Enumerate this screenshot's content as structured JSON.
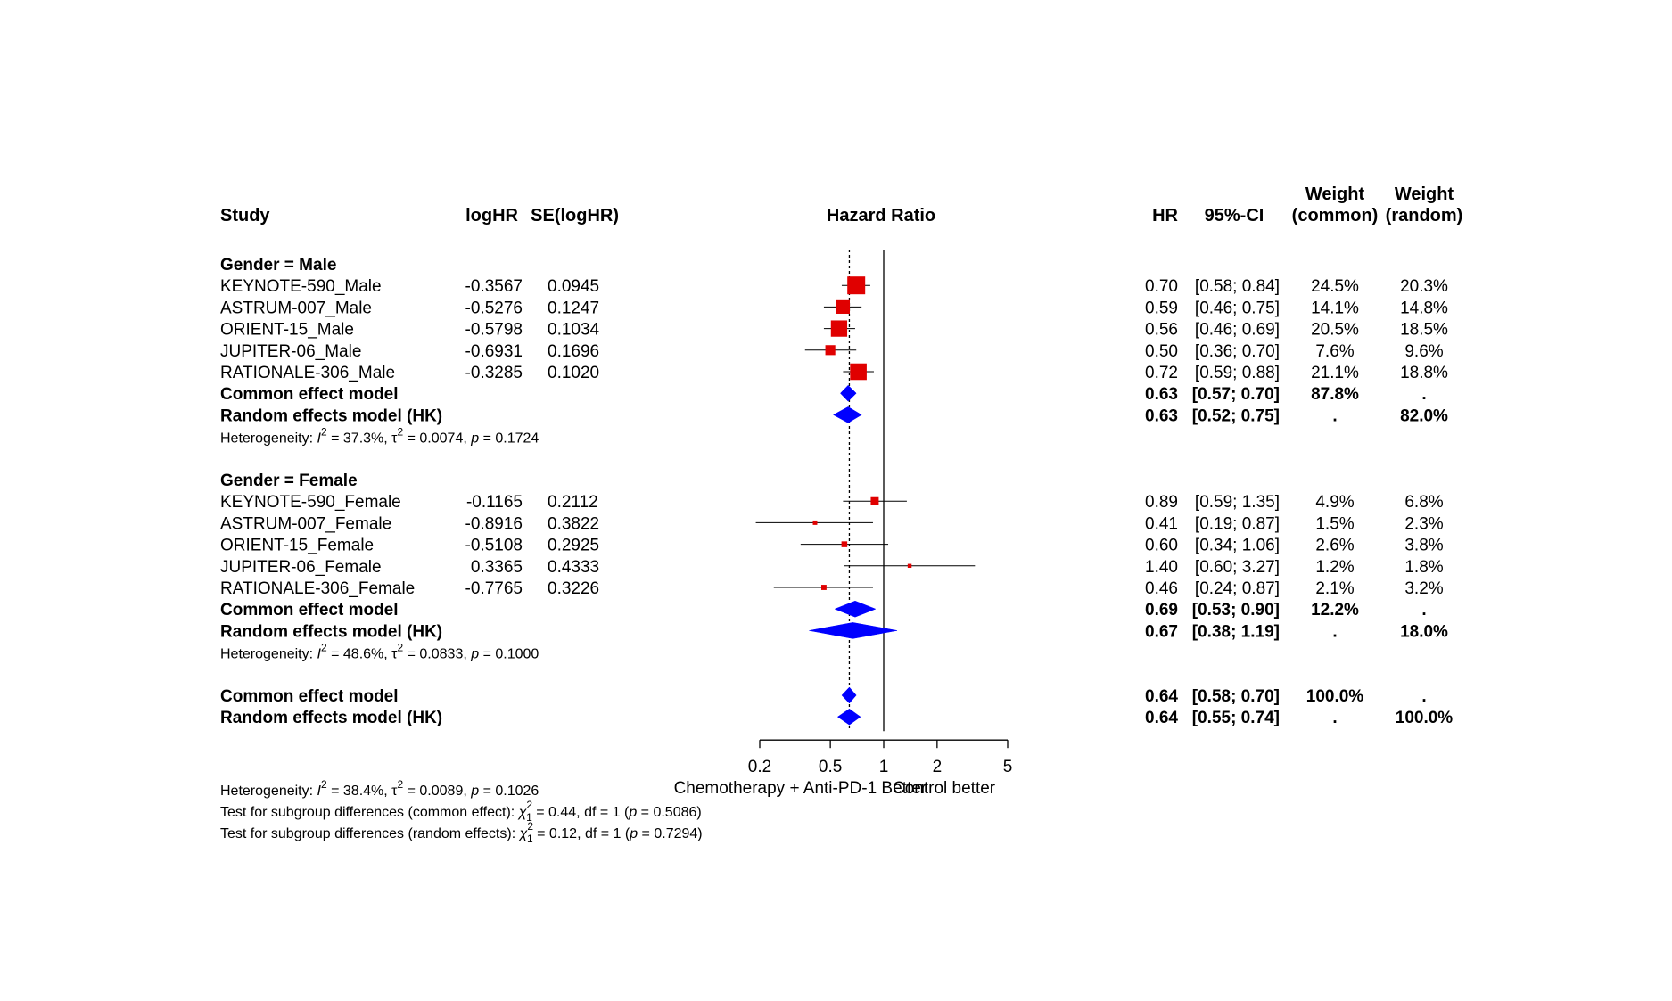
{
  "headers": {
    "study": "Study",
    "loghr": "logHR",
    "se": "SE(logHR)",
    "plot": "Hazard Ratio",
    "hr": "HR",
    "ci": "95%-CI",
    "weight_common_1": "Weight",
    "weight_common_2": "(common)",
    "weight_random_1": "Weight",
    "weight_random_2": "(random)"
  },
  "colors": {
    "study_box": "#e00000",
    "pooled_diamond": "#0000ff",
    "line": "#000000"
  },
  "chart_data": {
    "type": "forest",
    "xscale": "log",
    "xlim": [
      0.2,
      5
    ],
    "ticks": [
      "0.2",
      "0.5",
      "1",
      "2",
      "5"
    ],
    "tick_values": [
      0.2,
      0.5,
      1,
      2,
      5
    ],
    "label_left": "Chemotherapy + Anti-PD-1 Better",
    "label_right": "Control better",
    "reference_line": 1,
    "pooled_random_line": 0.64,
    "rows": [
      {
        "kind": "group",
        "label": "Gender = Male"
      },
      {
        "kind": "study",
        "label": "KEYNOTE-590_Male",
        "loghr": "-0.3567",
        "se": "0.0945",
        "hr": 0.7,
        "lo": 0.58,
        "hi": 0.84,
        "hr_text": "0.70",
        "ci_text": "[0.58; 0.84]",
        "wc": "24.5%",
        "wr": "20.3%",
        "weight": 24.5
      },
      {
        "kind": "study",
        "label": "ASTRUM-007_Male",
        "loghr": "-0.5276",
        "se": "0.1247",
        "hr": 0.59,
        "lo": 0.46,
        "hi": 0.75,
        "hr_text": "0.59",
        "ci_text": "[0.46; 0.75]",
        "wc": "14.1%",
        "wr": "14.8%",
        "weight": 14.1
      },
      {
        "kind": "study",
        "label": "ORIENT-15_Male",
        "loghr": "-0.5798",
        "se": "0.1034",
        "hr": 0.56,
        "lo": 0.46,
        "hi": 0.69,
        "hr_text": "0.56",
        "ci_text": "[0.46; 0.69]",
        "wc": "20.5%",
        "wr": "18.5%",
        "weight": 20.5
      },
      {
        "kind": "study",
        "label": "JUPITER-06_Male",
        "loghr": "-0.6931",
        "se": "0.1696",
        "hr": 0.5,
        "lo": 0.36,
        "hi": 0.7,
        "hr_text": "0.50",
        "ci_text": "[0.36; 0.70]",
        "wc": "7.6%",
        "wr": "9.6%",
        "weight": 7.6
      },
      {
        "kind": "study",
        "label": "RATIONALE-306_Male",
        "loghr": "-0.3285",
        "se": "0.1020",
        "hr": 0.72,
        "lo": 0.59,
        "hi": 0.88,
        "hr_text": "0.72",
        "ci_text": "[0.59; 0.88]",
        "wc": "21.1%",
        "wr": "18.8%",
        "weight": 21.1
      },
      {
        "kind": "pooled",
        "label": "Common effect model",
        "hr": 0.63,
        "lo": 0.57,
        "hi": 0.7,
        "hr_text": "0.63",
        "ci_text": "[0.57; 0.70]",
        "wc": "87.8%",
        "wr": "."
      },
      {
        "kind": "pooled",
        "label": "Random effects model (HK)",
        "hr": 0.63,
        "lo": 0.52,
        "hi": 0.75,
        "hr_text": "0.63",
        "ci_text": "[0.52; 0.75]",
        "wc": ".",
        "wr": "82.0%"
      },
      {
        "kind": "het",
        "i2": "37.3%",
        "tau2": "0.0074",
        "p": "0.1724"
      },
      {
        "kind": "blank"
      },
      {
        "kind": "group",
        "label": "Gender = Female"
      },
      {
        "kind": "study",
        "label": "KEYNOTE-590_Female",
        "loghr": "-0.1165",
        "se": "0.2112",
        "hr": 0.89,
        "lo": 0.59,
        "hi": 1.35,
        "hr_text": "0.89",
        "ci_text": "[0.59; 1.35]",
        "wc": "4.9%",
        "wr": "6.8%",
        "weight": 4.9
      },
      {
        "kind": "study",
        "label": "ASTRUM-007_Female",
        "loghr": "-0.8916",
        "se": "0.3822",
        "hr": 0.41,
        "lo": 0.19,
        "hi": 0.87,
        "hr_text": "0.41",
        "ci_text": "[0.19; 0.87]",
        "wc": "1.5%",
        "wr": "2.3%",
        "weight": 1.5
      },
      {
        "kind": "study",
        "label": "ORIENT-15_Female",
        "loghr": "-0.5108",
        "se": "0.2925",
        "hr": 0.6,
        "lo": 0.34,
        "hi": 1.06,
        "hr_text": "0.60",
        "ci_text": "[0.34; 1.06]",
        "wc": "2.6%",
        "wr": "3.8%",
        "weight": 2.6
      },
      {
        "kind": "study",
        "label": "JUPITER-06_Female",
        "loghr": "0.3365",
        "se": "0.4333",
        "hr": 1.4,
        "lo": 0.6,
        "hi": 3.27,
        "hr_text": "1.40",
        "ci_text": "[0.60; 3.27]",
        "wc": "1.2%",
        "wr": "1.8%",
        "weight": 1.2
      },
      {
        "kind": "study",
        "label": "RATIONALE-306_Female",
        "loghr": "-0.7765",
        "se": "0.3226",
        "hr": 0.46,
        "lo": 0.24,
        "hi": 0.87,
        "hr_text": "0.46",
        "ci_text": "[0.24; 0.87]",
        "wc": "2.1%",
        "wr": "3.2%",
        "weight": 2.1
      },
      {
        "kind": "pooled",
        "label": "Common effect model",
        "hr": 0.69,
        "lo": 0.53,
        "hi": 0.9,
        "hr_text": "0.69",
        "ci_text": "[0.53; 0.90]",
        "wc": "12.2%",
        "wr": "."
      },
      {
        "kind": "pooled",
        "label": "Random effects model (HK)",
        "hr": 0.67,
        "lo": 0.38,
        "hi": 1.19,
        "hr_text": "0.67",
        "ci_text": "[0.38; 1.19]",
        "wc": ".",
        "wr": "18.0%"
      },
      {
        "kind": "het",
        "i2": "48.6%",
        "tau2": "0.0833",
        "p": "0.1000"
      },
      {
        "kind": "blank"
      },
      {
        "kind": "pooled",
        "label": "Common effect model",
        "hr": 0.64,
        "lo": 0.58,
        "hi": 0.7,
        "hr_text": "0.64",
        "ci_text": "[0.58; 0.70]",
        "wc": "100.0%",
        "wr": "."
      },
      {
        "kind": "pooled",
        "label": "Random effects model (HK)",
        "hr": 0.64,
        "lo": 0.55,
        "hi": 0.74,
        "hr_text": "0.64",
        "ci_text": "[0.55; 0.74]",
        "wc": ".",
        "wr": "100.0%"
      }
    ],
    "overall_heterogeneity": {
      "i2": "38.4%",
      "tau2": "0.0089",
      "p": "0.1026"
    },
    "subgroup_tests": [
      {
        "prefix": "Test for subgroup differences (common effect): ",
        "chi2": "0.44",
        "df": "1",
        "p": "0.5086"
      },
      {
        "prefix": "Test for subgroup differences (random effects): ",
        "chi2": "0.12",
        "df": "1",
        "p": "0.7294"
      }
    ]
  }
}
